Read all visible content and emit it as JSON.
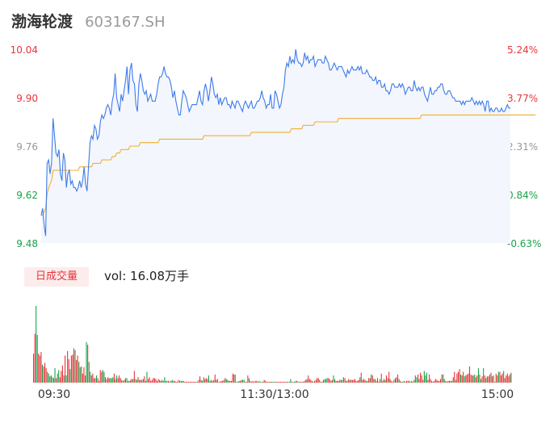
{
  "stock": {
    "name": "渤海轮渡",
    "code": "603167.SH"
  },
  "volume_badge": "日成交量",
  "volume_total": {
    "label": "vol: ",
    "value": "16.08万手"
  },
  "colors": {
    "price_line": "#3d7bea",
    "avg_line": "#f0b030",
    "area_fill": "#f3f6fd",
    "up": "#e8353a",
    "down": "#1aa34a",
    "flat": "#999999"
  },
  "chart_data": {
    "type": "line",
    "title": "",
    "xlabel": "",
    "ylabel": "",
    "ylim": [
      9.48,
      10.04
    ],
    "pct_range": [
      "-0.63%",
      "5.24%"
    ],
    "price_ticks": [
      "10.04",
      "9.90",
      "9.76",
      "9.62",
      "9.48"
    ],
    "pct_ticks": [
      "5.24%",
      "3.77%",
      "2.31%",
      "0.84%",
      "-0.63%"
    ],
    "x_ticks": [
      "09:30",
      "11:30/13:00",
      "15:00"
    ],
    "series": [
      {
        "values": [
          9.56,
          9.58,
          9.53,
          9.5,
          9.71,
          9.72,
          9.68,
          9.71,
          9.84,
          9.79,
          9.74,
          9.73,
          9.75,
          9.68,
          9.66,
          9.74,
          9.72,
          9.64,
          9.68,
          9.69,
          9.65,
          9.66,
          9.64,
          9.64,
          9.63,
          9.64,
          9.66,
          9.64,
          9.66,
          9.7,
          9.65,
          9.63,
          9.7,
          9.77,
          9.79,
          9.78,
          9.82,
          9.81,
          9.78,
          9.79,
          9.83,
          9.85,
          9.84,
          9.85,
          9.87,
          9.88,
          9.87,
          9.85,
          9.89,
          9.91,
          9.97,
          9.9,
          9.88,
          9.86,
          9.91,
          9.89,
          9.92,
          9.95,
          9.99,
          9.91,
          9.98,
          10.0,
          9.95,
          9.94,
          9.88,
          9.86,
          9.94,
          9.97,
          9.95,
          9.92,
          9.91,
          9.92,
          9.89,
          9.9,
          9.91,
          9.89,
          9.89,
          9.89,
          9.91,
          9.94,
          9.96,
          9.96,
          9.97,
          9.99,
          9.97,
          9.96,
          9.96,
          9.95,
          9.93,
          9.9,
          9.92,
          9.89,
          9.87,
          9.85,
          9.85,
          9.89,
          9.92,
          9.91,
          9.9,
          9.88,
          9.86,
          9.87,
          9.88,
          9.88,
          9.88,
          9.88,
          9.9,
          9.92,
          9.89,
          9.88,
          9.92,
          9.94,
          9.92,
          9.89,
          9.92,
          9.96,
          9.94,
          9.91,
          9.9,
          9.91,
          9.88,
          9.9,
          9.88,
          9.89,
          9.9,
          9.9,
          9.88,
          9.88,
          9.87,
          9.89,
          9.88,
          9.87,
          9.89,
          9.89,
          9.88,
          9.87,
          9.86,
          9.88,
          9.89,
          9.88,
          9.87,
          9.88,
          9.89,
          9.87,
          9.87,
          9.88,
          9.89,
          9.89,
          9.9,
          9.92,
          9.9,
          9.89,
          9.87,
          9.88,
          9.88,
          9.91,
          9.87,
          9.87,
          9.92,
          9.91,
          9.89,
          9.87,
          9.88,
          9.91,
          9.93,
          9.98,
          10.0,
          9.99,
          10.02,
          10.0,
          10.01,
          10.0,
          10.04,
          10.01,
          10.0,
          10.0,
          9.99,
          10.0,
          10.03,
          10.01,
          10.02,
          10.0,
          10.01,
          10.01,
          10.02,
          9.99,
          10.0,
          10.01,
          10.01,
          10.01,
          10.0,
          10.0,
          10.02,
          10.01,
          10.0,
          9.98,
          9.98,
          9.99,
          10.0,
          9.99,
          9.98,
          9.99,
          9.99,
          9.99,
          9.98,
          9.97,
          9.96,
          9.98,
          9.97,
          9.98,
          9.99,
          9.98,
          9.98,
          9.98,
          9.99,
          9.98,
          9.99,
          9.97,
          9.97,
          9.97,
          9.98,
          9.97,
          9.96,
          9.96,
          9.95,
          9.95,
          9.96,
          9.94,
          9.95,
          9.95,
          9.93,
          9.93,
          9.94,
          9.92,
          9.92,
          9.91,
          9.92,
          9.94,
          9.94,
          9.93,
          9.93,
          9.93,
          9.94,
          9.93,
          9.94,
          9.93,
          9.91,
          9.92,
          9.93,
          9.93,
          9.92,
          9.92,
          9.95,
          9.93,
          9.92,
          9.93,
          9.92,
          9.93,
          9.93,
          9.91,
          9.9,
          9.89,
          9.91,
          9.93,
          9.91,
          9.91,
          9.92,
          9.92,
          9.93,
          9.93,
          9.94,
          9.94,
          9.92,
          9.91,
          9.91,
          9.92,
          9.92,
          9.91,
          9.9,
          9.9,
          9.89,
          9.89,
          9.89,
          9.89,
          9.88,
          9.89,
          9.88,
          9.89,
          9.89,
          9.89,
          9.89,
          9.9,
          9.89,
          9.88,
          9.89,
          9.88,
          9.89,
          9.88,
          9.89,
          9.88,
          9.86,
          9.89,
          9.89,
          9.86,
          9.87,
          9.86,
          9.86,
          9.87,
          9.87,
          9.86,
          9.86,
          9.87,
          9.86,
          9.86,
          9.87,
          9.88,
          9.87,
          9.87
        ]
      },
      {
        "values": [
          9.56,
          9.56,
          9.57,
          9.58,
          9.62,
          9.64,
          9.65,
          9.66,
          9.69,
          9.69,
          9.69,
          9.69,
          9.69,
          9.69,
          9.69,
          9.69,
          9.69,
          9.69,
          9.69,
          9.69,
          9.69,
          9.69,
          9.69,
          9.69,
          9.69,
          9.69,
          9.7,
          9.7,
          9.7,
          9.7,
          9.7,
          9.7,
          9.7,
          9.7,
          9.7,
          9.71,
          9.71,
          9.71,
          9.71,
          9.71,
          9.71,
          9.72,
          9.72,
          9.72,
          9.72,
          9.72,
          9.72,
          9.72,
          9.73,
          9.73,
          9.73,
          9.74,
          9.74,
          9.74,
          9.75,
          9.75,
          9.75,
          9.75,
          9.75,
          9.75,
          9.76,
          9.76,
          9.76,
          9.76,
          9.76,
          9.76,
          9.76,
          9.77,
          9.77,
          9.77,
          9.77,
          9.77,
          9.77,
          9.77,
          9.77,
          9.77,
          9.77,
          9.77,
          9.77,
          9.77,
          9.78,
          9.78,
          9.78,
          9.78,
          9.78,
          9.78,
          9.78,
          9.78,
          9.78,
          9.78,
          9.78,
          9.78,
          9.78,
          9.78,
          9.78,
          9.78,
          9.78,
          9.78,
          9.78,
          9.78,
          9.78,
          9.78,
          9.78,
          9.78,
          9.78,
          9.78,
          9.78,
          9.78,
          9.78,
          9.78,
          9.79,
          9.79,
          9.79,
          9.79,
          9.79,
          9.79,
          9.79,
          9.79,
          9.79,
          9.79,
          9.79,
          9.79,
          9.79,
          9.79,
          9.79,
          9.79,
          9.79,
          9.79,
          9.79,
          9.79,
          9.79,
          9.79,
          9.79,
          9.79,
          9.79,
          9.79,
          9.79,
          9.79,
          9.79,
          9.79,
          9.79,
          9.79,
          9.8,
          9.8,
          9.8,
          9.8,
          9.8,
          9.8,
          9.8,
          9.8,
          9.8,
          9.8,
          9.8,
          9.8,
          9.8,
          9.8,
          9.8,
          9.8,
          9.8,
          9.8,
          9.8,
          9.8,
          9.8,
          9.8,
          9.8,
          9.8,
          9.8,
          9.8,
          9.8,
          9.81,
          9.81,
          9.81,
          9.81,
          9.81,
          9.81,
          9.81,
          9.81,
          9.82,
          9.82,
          9.82,
          9.82,
          9.82,
          9.82,
          9.82,
          9.82,
          9.83,
          9.83,
          9.83,
          9.83,
          9.83,
          9.83,
          9.83,
          9.83,
          9.83,
          9.83,
          9.83,
          9.83,
          9.83,
          9.83,
          9.83,
          9.83,
          9.84,
          9.84,
          9.84,
          9.84,
          9.84,
          9.84,
          9.84,
          9.84,
          9.84,
          9.84,
          9.84,
          9.84,
          9.84,
          9.84,
          9.84,
          9.84,
          9.84,
          9.84,
          9.84,
          9.84,
          9.84,
          9.84,
          9.84,
          9.84,
          9.84,
          9.84,
          9.84,
          9.84,
          9.84,
          9.84,
          9.84,
          9.84,
          9.84,
          9.84,
          9.84,
          9.84,
          9.84,
          9.84,
          9.84,
          9.84,
          9.84,
          9.84,
          9.84,
          9.84,
          9.84,
          9.84,
          9.84,
          9.84,
          9.84,
          9.84,
          9.84,
          9.84,
          9.84,
          9.84,
          9.84,
          9.84,
          9.85,
          9.85,
          9.85,
          9.85,
          9.85,
          9.85,
          9.85,
          9.85,
          9.85,
          9.85,
          9.85,
          9.85,
          9.85,
          9.85,
          9.85,
          9.85,
          9.85,
          9.85,
          9.85,
          9.85,
          9.85,
          9.85,
          9.85,
          9.85,
          9.85,
          9.85,
          9.85,
          9.85,
          9.85,
          9.85,
          9.85,
          9.85,
          9.85,
          9.85,
          9.85,
          9.85,
          9.85,
          9.85,
          9.85,
          9.85,
          9.85,
          9.85,
          9.85,
          9.85,
          9.85,
          9.85,
          9.85,
          9.85,
          9.85,
          9.85,
          9.85,
          9.85,
          9.85,
          9.85,
          9.85,
          9.85,
          9.85,
          9.85,
          9.85,
          9.85,
          9.85,
          9.85,
          9.85,
          9.85,
          9.85,
          9.85,
          9.85,
          9.85,
          9.85,
          9.85,
          9.85,
          9.85,
          9.85,
          9.85,
          9.85,
          9.85,
          9.85,
          9.85
        ]
      }
    ],
    "volume_bars": [
      {
        "values": [
          32,
          54,
          85,
          53,
          32,
          30,
          34,
          20,
          18,
          22,
          16,
          12,
          10,
          7,
          8,
          6,
          5,
          16,
          5,
          10,
          14,
          6,
          13,
          19,
          8,
          30,
          8,
          35,
          26,
          15,
          30,
          31,
          38,
          36,
          25,
          30,
          23,
          17,
          18,
          10,
          17,
          8,
          45,
          42,
          23,
          12,
          8,
          10,
          5,
          5,
          8,
          5,
          2,
          14,
          12,
          14,
          12,
          6,
          4,
          6,
          5,
          5,
          5,
          6,
          10,
          4,
          8,
          5,
          8,
          5,
          3,
          2,
          3,
          5,
          5,
          2,
          2,
          3,
          4,
          4,
          13,
          4,
          3,
          6,
          3,
          3,
          3,
          4,
          7,
          2,
          12,
          4,
          6,
          2,
          3,
          5,
          5,
          4,
          2,
          4,
          3,
          2,
          3,
          2,
          6,
          2,
          2,
          2,
          1,
          2,
          3,
          2,
          2,
          1,
          1,
          3,
          2,
          2,
          2,
          2,
          1,
          1,
          1,
          1,
          1,
          1,
          1,
          1,
          1,
          1,
          1,
          3,
          7,
          3,
          2,
          6,
          4,
          5,
          4,
          8,
          2,
          3,
          2,
          3,
          9,
          3,
          4,
          1,
          1,
          2,
          2,
          3,
          5,
          4,
          3,
          2,
          2,
          2,
          10,
          9,
          9,
          1,
          1,
          2,
          2,
          3,
          3,
          3,
          1,
          1,
          8,
          5,
          2,
          1,
          2,
          1,
          2,
          2,
          1,
          2,
          1,
          1,
          1,
          3,
          2,
          1,
          1,
          1,
          1,
          1,
          1,
          1,
          1,
          1,
          1,
          1,
          1,
          1,
          1,
          1,
          1,
          1,
          1,
          1,
          4,
          1,
          1,
          1,
          2,
          2,
          1,
          1,
          1,
          1,
          1,
          2,
          3,
          4,
          8,
          4,
          3,
          2,
          1,
          2,
          3,
          5,
          5,
          3,
          1,
          1,
          3,
          4,
          4,
          5,
          5,
          4,
          2,
          3,
          8,
          4,
          2,
          2,
          2,
          3,
          3,
          3,
          6,
          5,
          2,
          2,
          4,
          3,
          3,
          3,
          3,
          4,
          2,
          2,
          3,
          6,
          11,
          3,
          4,
          3,
          2,
          2,
          5,
          5,
          9,
          8,
          4,
          4,
          2,
          5,
          1,
          4,
          10,
          2,
          4,
          3,
          8,
          5,
          12,
          4,
          2,
          1,
          3,
          5,
          6,
          9,
          4,
          2,
          1,
          1,
          2,
          1,
          2,
          2,
          2,
          1,
          2,
          1,
          3,
          8,
          6,
          9,
          4,
          11,
          8,
          3,
          13,
          8,
          11,
          3,
          9,
          4,
          2,
          1,
          2,
          4,
          3,
          2,
          2,
          4,
          9,
          9,
          4,
          2,
          1,
          2,
          2,
          2,
          2,
          6,
          12,
          3,
          10,
          12,
          15,
          9,
          8,
          12,
          7,
          8,
          9,
          10,
          18,
          9,
          8,
          8,
          9,
          6,
          8,
          16,
          9,
          4,
          7,
          16,
          8,
          5,
          7,
          7,
          9,
          11,
          7,
          8,
          1,
          10,
          8,
          12,
          12,
          8,
          10,
          13,
          5,
          8,
          10,
          7,
          9,
          11
        ]
      },
      {
        "directions": ""
      }
    ]
  }
}
